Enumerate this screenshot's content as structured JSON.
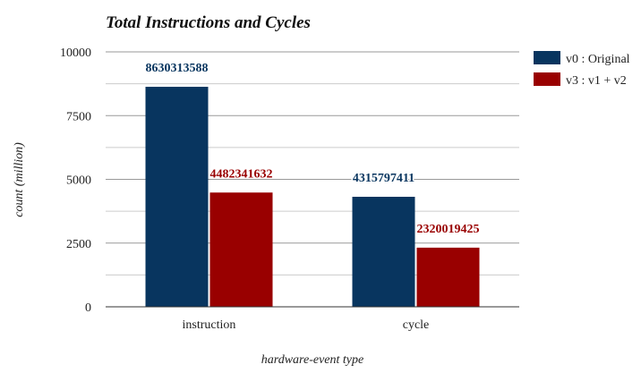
{
  "chart_data": {
    "type": "bar",
    "title": "Total Instructions and Cycles",
    "xlabel": "hardware-event type",
    "ylabel": "count (million)",
    "categories": [
      "instruction",
      "cycle"
    ],
    "ylim": [
      0,
      10000
    ],
    "yticks": [
      0,
      2500,
      5000,
      7500,
      10000
    ],
    "grid": true,
    "legend_position": "top-right",
    "series": [
      {
        "name": "v0 : Original",
        "color": "#08355f",
        "values": [
          8630.313588,
          4315.797411
        ],
        "data_labels": [
          "8630313588",
          "4315797411"
        ]
      },
      {
        "name": "v3 : v1 + v2",
        "color": "#990000",
        "values": [
          4482.341632,
          2320.019425
        ],
        "data_labels": [
          "4482341632",
          "2320019425"
        ]
      }
    ]
  }
}
